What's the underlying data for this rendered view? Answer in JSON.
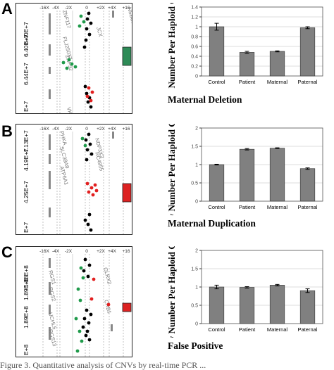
{
  "panels": [
    {
      "letter": "A",
      "chart_title": "Maternal Deletion",
      "array_plot": {
        "scale_labels": [
          "-16X",
          "-4X",
          "-2X",
          "0",
          "+2X",
          "+4X",
          "+16"
        ],
        "position_labels": [
          "6.40E+7",
          "6.40E+7",
          "6.44E+7",
          "E+7"
        ],
        "gene_labels": [
          "ZNF117",
          "FLJ25037",
          "ZNF92",
          "VKORC1L1",
          "NSBC1",
          "JCX"
        ],
        "segment_color": "#2e8b57"
      },
      "chart_data": {
        "type": "bar",
        "categories": [
          "Control",
          "Patient",
          "Maternal",
          "Paternal"
        ],
        "values": [
          1.0,
          0.48,
          0.5,
          0.98
        ],
        "errors": [
          0.07,
          0.02,
          0.01,
          0.02
        ],
        "ylabel": "Copy Number Per Haploid Genome",
        "ylim": [
          0,
          1.4
        ],
        "yticks": [
          "0",
          "0.2",
          "0.4",
          "0.6",
          "0.8",
          "1",
          "1.2",
          "1.4"
        ],
        "grid": true,
        "bar_color": "#808080"
      }
    },
    {
      "letter": "B",
      "chart_title": "Maternal Duplication",
      "array_plot": {
        "scale_labels": [
          "-16X",
          "-4X",
          "-2X",
          "0",
          "+2X",
          "+4X",
          "+16"
        ],
        "position_labels": [
          "4.19E+7",
          "4.13E+7",
          "4.25E+7",
          "E+7"
        ],
        "gene_labels": [
          "PHKA",
          "SLC38A9",
          "ATP6A1",
          "NDP3X3",
          "RC4955"
        ],
        "segment_color": "#dd2222"
      },
      "chart_data": {
        "type": "bar",
        "categories": [
          "Control",
          "Patient",
          "Maternal",
          "Paternal"
        ],
        "values": [
          1.0,
          1.42,
          1.45,
          0.89
        ],
        "errors": [
          0.01,
          0.02,
          0.01,
          0.02
        ],
        "ylabel": "Copy Number Per Haploid Genome",
        "ylim": [
          0,
          2
        ],
        "yticks": [
          "0",
          "0.5",
          "1",
          "1.5",
          "2"
        ],
        "grid": true,
        "bar_color": "#808080"
      }
    },
    {
      "letter": "C",
      "chart_title": "False Positive",
      "array_plot": {
        "scale_labels": [
          "-16X",
          "-4X",
          "-2X",
          "0",
          "+2X",
          "+4X",
          "+16"
        ],
        "position_labels": [
          "1.89E+8",
          "1.88E+8",
          "1.89E+8",
          "E+8"
        ],
        "gene_labels": [
          "RGS1",
          "RGS2",
          "UCHL5",
          "RGS13",
          "GLRX2",
          "CRB1"
        ],
        "segment_color": "#dd2222"
      },
      "chart_data": {
        "type": "bar",
        "categories": [
          "Control",
          "Patient",
          "Maternal",
          "Paternal"
        ],
        "values": [
          1.0,
          0.99,
          1.05,
          0.9
        ],
        "errors": [
          0.05,
          0.02,
          0.02,
          0.05
        ],
        "ylabel": "Copy Number Per Haploid Genome",
        "ylim": [
          0,
          2
        ],
        "yticks": [
          "0",
          "0.5",
          "1",
          "1.5",
          "2"
        ],
        "grid": true,
        "bar_color": "#808080"
      }
    }
  ],
  "caption": "Figure 3. Quantitative analysis of CNVs by real-time PCR ..."
}
